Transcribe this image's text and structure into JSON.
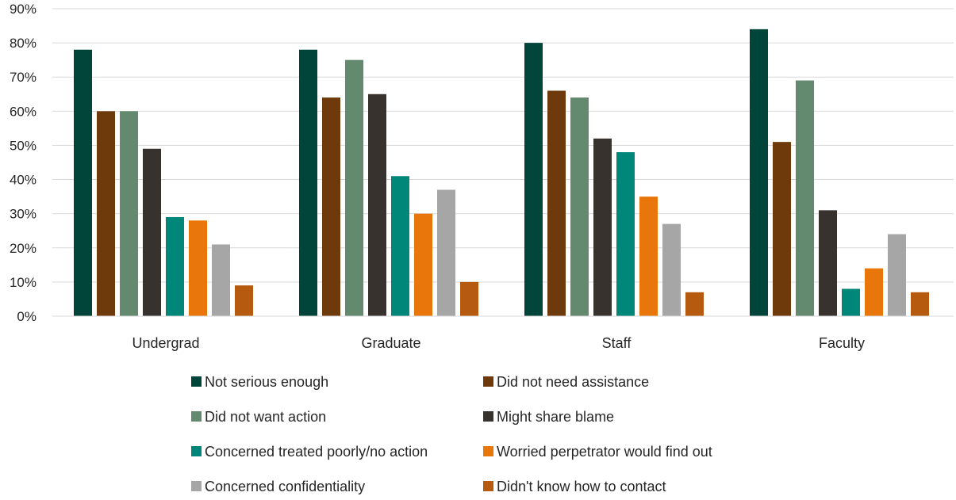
{
  "chart_data": {
    "type": "bar",
    "categories": [
      "Undergrad",
      "Graduate",
      "Staff",
      "Faculty"
    ],
    "ylim": [
      0,
      90
    ],
    "yticks": [
      0,
      10,
      20,
      30,
      40,
      50,
      60,
      70,
      80,
      90
    ],
    "ytick_format": "percent",
    "grid": true,
    "legend_placement": "bottom",
    "series": [
      {
        "name": "Not serious enough",
        "color": "#00443A",
        "values": [
          78,
          78,
          80,
          84
        ]
      },
      {
        "name": "Did not need assistance",
        "color": "#6E3A0C",
        "values": [
          60,
          64,
          66,
          51
        ]
      },
      {
        "name": "Did not want action",
        "color": "#63896E",
        "values": [
          60,
          75,
          64,
          69
        ]
      },
      {
        "name": "Might share blame",
        "color": "#37322E",
        "values": [
          49,
          65,
          52,
          31
        ]
      },
      {
        "name": "Concerned treated poorly/no action",
        "color": "#00877A",
        "values": [
          29,
          41,
          48,
          8
        ]
      },
      {
        "name": "Worried perpetrator would find out",
        "color": "#E8760A",
        "values": [
          28,
          30,
          35,
          14
        ]
      },
      {
        "name": "Concerned confidentiality",
        "color": "#A6A6A6",
        "values": [
          21,
          37,
          27,
          24
        ]
      },
      {
        "name": "Didn't know how to contact",
        "color": "#B65A10",
        "values": [
          9,
          10,
          7,
          7
        ]
      }
    ]
  }
}
